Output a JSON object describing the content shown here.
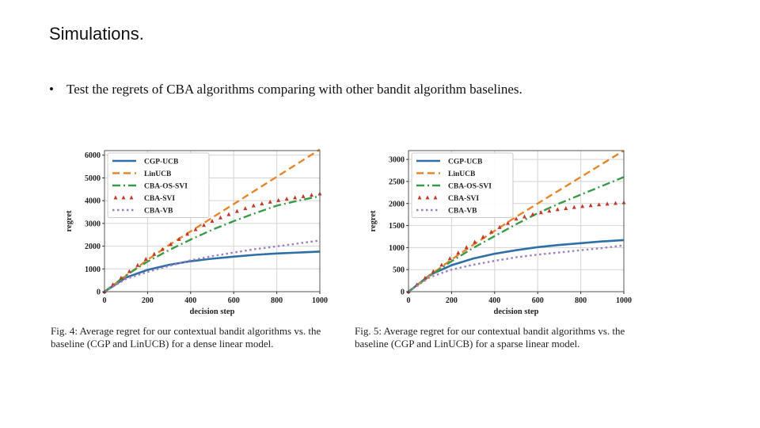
{
  "slide": {
    "title": "Simulations.",
    "bullet_symbol": "•",
    "bullet_text": "Test the regrets of CBA algorithms comparing with other bandit algorithm baselines."
  },
  "colors": {
    "CGP-UCB": "#2f6fa8",
    "LinUCB": "#e8852a",
    "CBA-OS-SVI": "#3a9a4a",
    "CBA-SVI": "#c0392b",
    "CBA-VB": "#9b7fc0"
  },
  "chart_data": [
    {
      "type": "line",
      "title": "",
      "xlabel": "decision step",
      "ylabel": "regret",
      "xlim": [
        0,
        1000
      ],
      "ylim": [
        0,
        6200
      ],
      "xticks": [
        0,
        200,
        400,
        600,
        800,
        1000
      ],
      "yticks": [
        0,
        1000,
        2000,
        3000,
        4000,
        5000,
        6000
      ],
      "grid": true,
      "legend_position": "top-left",
      "caption": "Fig. 4: Average regret for our contextual bandit algorithms vs. the baseline (CGP and LinUCB) for a dense linear model.",
      "series": [
        {
          "name": "CGP-UCB",
          "style": "solid",
          "x": [
            0,
            100,
            200,
            300,
            400,
            500,
            600,
            700,
            800,
            900,
            1000
          ],
          "y": [
            0,
            620,
            960,
            1180,
            1340,
            1450,
            1540,
            1620,
            1680,
            1720,
            1760
          ]
        },
        {
          "name": "LinUCB",
          "style": "dashed",
          "x": [
            0,
            100,
            200,
            300,
            400,
            500,
            600,
            700,
            800,
            900,
            1000
          ],
          "y": [
            0,
            700,
            1400,
            2050,
            2650,
            3250,
            3850,
            4450,
            5050,
            5650,
            6250
          ]
        },
        {
          "name": "CBA-OS-SVI",
          "style": "dashdot",
          "x": [
            0,
            100,
            200,
            300,
            400,
            500,
            600,
            700,
            800,
            900,
            1000
          ],
          "y": [
            0,
            720,
            1320,
            1830,
            2290,
            2720,
            3100,
            3450,
            3780,
            4000,
            4200
          ]
        },
        {
          "name": "CBA-SVI",
          "style": "triangles",
          "x": [
            0,
            100,
            200,
            300,
            400,
            500,
            600,
            700,
            800,
            900,
            1000
          ],
          "y": [
            0,
            780,
            1480,
            2030,
            2620,
            3100,
            3480,
            3800,
            4000,
            4150,
            4300
          ]
        },
        {
          "name": "CBA-VB",
          "style": "dotted",
          "x": [
            0,
            100,
            200,
            300,
            400,
            500,
            600,
            700,
            800,
            900,
            1000
          ],
          "y": [
            0,
            560,
            870,
            1130,
            1380,
            1560,
            1720,
            1870,
            1990,
            2120,
            2250
          ]
        }
      ]
    },
    {
      "type": "line",
      "title": "",
      "xlabel": "decision step",
      "ylabel": "regret",
      "xlim": [
        0,
        1000
      ],
      "ylim": [
        0,
        3200
      ],
      "xticks": [
        0,
        200,
        400,
        600,
        800,
        1000
      ],
      "yticks": [
        0,
        500,
        1000,
        1500,
        2000,
        2500,
        3000
      ],
      "grid": true,
      "legend_position": "top-left",
      "caption": "Fig. 5: Average regret for our contextual bandit algorithms vs. the baseline (CGP and LinUCB) for a sparse linear model.",
      "series": [
        {
          "name": "CGP-UCB",
          "style": "solid",
          "x": [
            0,
            100,
            200,
            300,
            400,
            500,
            600,
            700,
            800,
            900,
            1000
          ],
          "y": [
            0,
            380,
            600,
            750,
            860,
            940,
            1010,
            1060,
            1100,
            1140,
            1170
          ]
        },
        {
          "name": "LinUCB",
          "style": "dashed",
          "x": [
            0,
            100,
            200,
            300,
            400,
            500,
            600,
            700,
            800,
            900,
            1000
          ],
          "y": [
            0,
            370,
            730,
            1060,
            1380,
            1700,
            2000,
            2300,
            2600,
            2900,
            3200
          ]
        },
        {
          "name": "CBA-OS-SVI",
          "style": "dashdot",
          "x": [
            0,
            100,
            200,
            300,
            400,
            500,
            600,
            700,
            800,
            900,
            1000
          ],
          "y": [
            0,
            360,
            690,
            990,
            1260,
            1530,
            1780,
            2000,
            2200,
            2400,
            2600
          ]
        },
        {
          "name": "CBA-SVI",
          "style": "triangles",
          "x": [
            0,
            100,
            200,
            300,
            400,
            500,
            600,
            700,
            800,
            900,
            1000
          ],
          "y": [
            0,
            400,
            780,
            1100,
            1400,
            1650,
            1780,
            1870,
            1930,
            1980,
            2020
          ]
        },
        {
          "name": "CBA-VB",
          "style": "dotted",
          "x": [
            0,
            100,
            200,
            300,
            400,
            500,
            600,
            700,
            800,
            900,
            1000
          ],
          "y": [
            0,
            330,
            500,
            610,
            700,
            780,
            840,
            890,
            940,
            990,
            1050
          ]
        }
      ]
    }
  ]
}
